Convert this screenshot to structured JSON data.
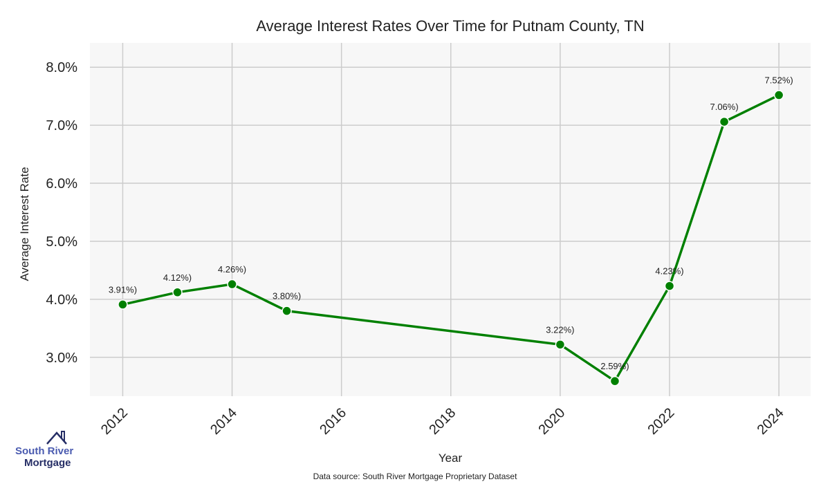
{
  "chart_data": {
    "type": "line",
    "title": "Average Interest Rates Over Time for Putnam County, TN",
    "xlabel": "Year",
    "ylabel": "Average Interest Rate",
    "x": [
      2012,
      2013,
      2014,
      2015,
      2020,
      2021,
      2022,
      2023,
      2024
    ],
    "values": [
      3.91,
      4.12,
      4.26,
      3.8,
      3.22,
      2.59,
      4.23,
      7.06,
      7.52
    ],
    "data_labels": [
      "3.91%)",
      "4.12%)",
      "4.26%)",
      "3.80%)",
      "3.22%)",
      "2.59%)",
      "4.23%)",
      "7.06%)",
      "7.52%)"
    ],
    "xticks": [
      2012,
      2014,
      2016,
      2018,
      2020,
      2022,
      2024
    ],
    "yticks": [
      3.0,
      4.0,
      5.0,
      6.0,
      7.0,
      8.0
    ],
    "ytick_labels": [
      "3.0%",
      "4.0%",
      "5.0%",
      "6.0%",
      "7.0%",
      "8.0%"
    ],
    "xlim": [
      2011.4,
      2024.58
    ],
    "ylim": [
      2.33,
      8.42
    ],
    "grid": true,
    "line_color": "#008000",
    "background": "#f7f7f7"
  },
  "footer": {
    "source": "Data source: South River Mortgage Proprietary Dataset"
  },
  "logo": {
    "line1": "South River",
    "line2": "Mortgage"
  }
}
